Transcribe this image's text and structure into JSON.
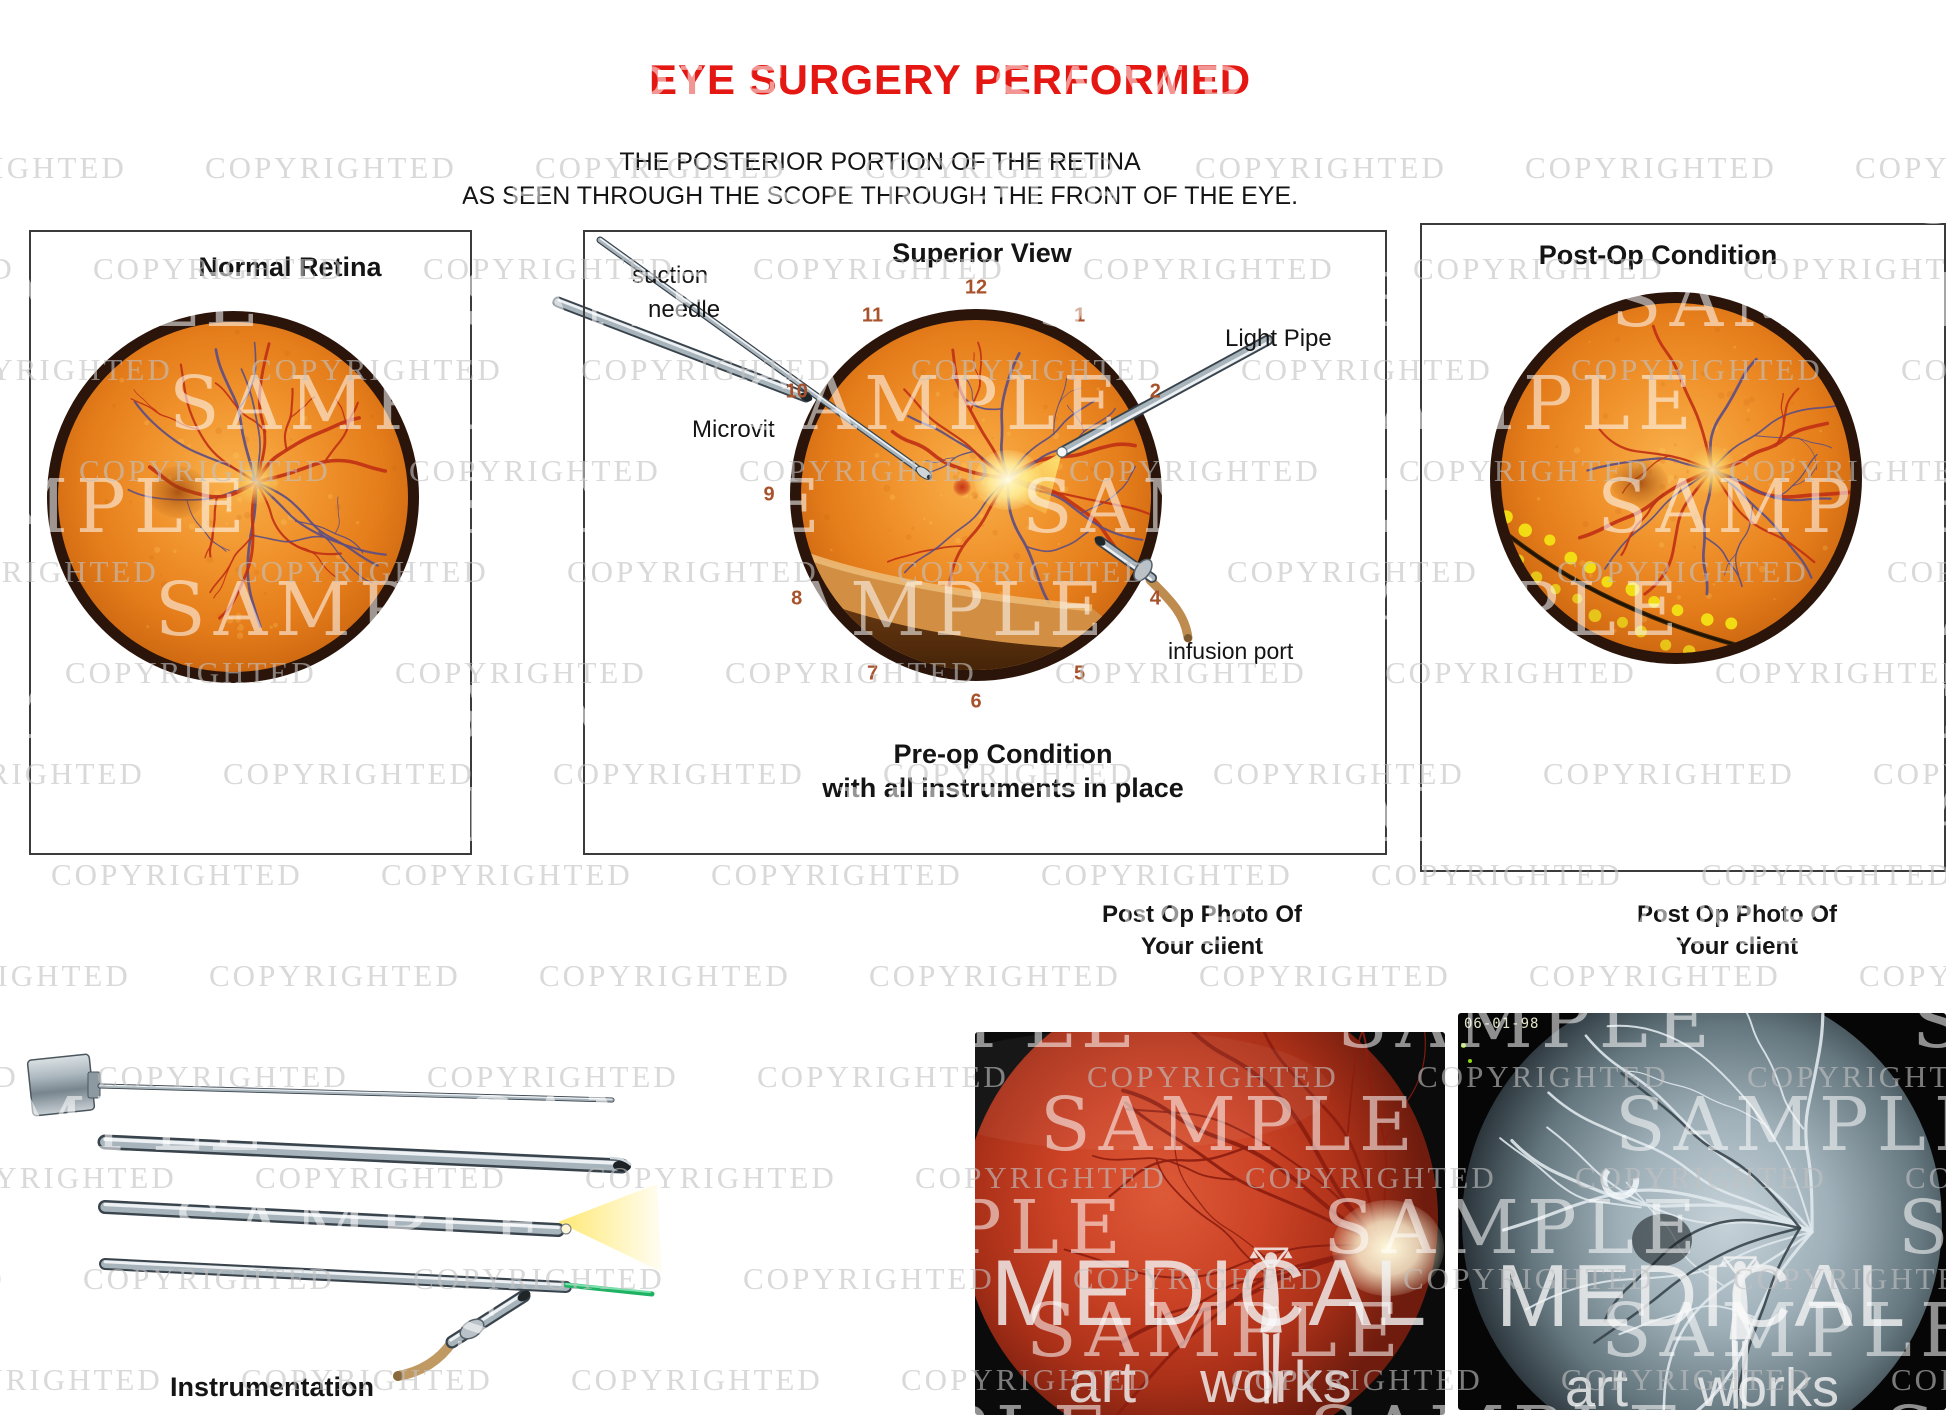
{
  "header": {
    "title": "EYE SURGERY PERFORMED",
    "subtitle_line1": "THE POSTERIOR PORTION OF THE RETINA",
    "subtitle_line2": "AS SEEN THROUGH THE SCOPE THROUGH THE FRONT OF THE EYE."
  },
  "panels": {
    "normal": {
      "title": "Normal Retina"
    },
    "superior": {
      "title": "Superior View",
      "caption_line1": "Pre-op Condition",
      "caption_line2": "with all instruments in place",
      "labels": {
        "suction_line1": "suction",
        "suction_line2": "needle",
        "microvit": "Microvit",
        "light_pipe": "Light Pipe",
        "infusion_port": "infusion port"
      },
      "clock_numbers": [
        "12",
        "1",
        "2",
        "4",
        "5",
        "6",
        "7",
        "8",
        "9",
        "10",
        "11"
      ]
    },
    "postop": {
      "title": "Post-Op Condition"
    }
  },
  "bottom": {
    "instrumentation_label": "Instrumentation",
    "photos": [
      {
        "caption_line1": "Post Op Photo Of",
        "caption_line2": "Your client"
      },
      {
        "caption_line1": "Post Op Photo Of",
        "caption_line2": "Your client",
        "datestamp": "06-01-98"
      }
    ],
    "logo": {
      "line1": "MEDICAL",
      "word_left": "art",
      "word_right": "works"
    }
  },
  "watermarks": {
    "diagonal_text": "COPYRIGHTED",
    "overlay_text": "SAMPLE"
  },
  "colors": {
    "title_red": "#e41712",
    "subtitle_black": "#141414",
    "panel_border": "#3b3b3b",
    "watermark_gray": "#c2c2c2",
    "sample_white": "#ffffff",
    "clock_number_rust": "#a8522c",
    "retina_orange": "#ef8c22",
    "retina_ring_brown": "#2b150b",
    "vessel_red": "#c03014",
    "vessel_violet": "#5b4d85",
    "laser_dot_yellow": "#f2e114",
    "light_beam_yellow": "#ffe45e",
    "detachment_brown": "#6a3a12",
    "photo_fundus_red": "#c23a22",
    "photo_fundus_gray": "#93a5ae"
  }
}
